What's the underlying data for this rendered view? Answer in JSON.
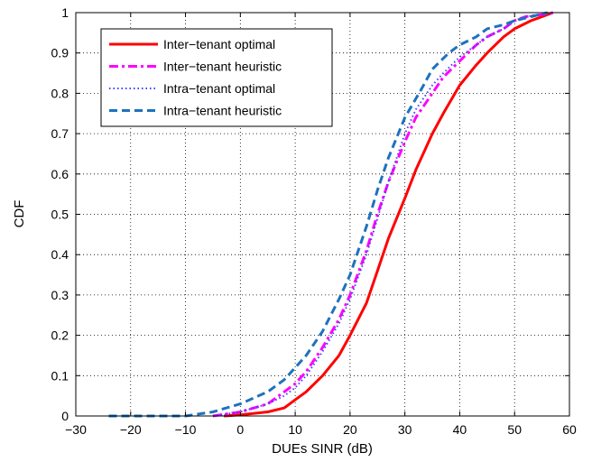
{
  "chart_data": {
    "type": "line",
    "title": "",
    "xlabel": "DUEs SINR (dB)",
    "ylabel": "CDF",
    "xlim": [
      -30,
      60
    ],
    "ylim": [
      0,
      1
    ],
    "xticks": [
      -30,
      -20,
      -10,
      0,
      10,
      20,
      30,
      40,
      50,
      60
    ],
    "xtick_labels": [
      "−30",
      "−20",
      "−10",
      "0",
      "10",
      "20",
      "30",
      "40",
      "50",
      "60"
    ],
    "yticks": [
      0,
      0.1,
      0.2,
      0.3,
      0.4,
      0.5,
      0.6,
      0.7,
      0.8,
      0.9,
      1
    ],
    "ytick_labels": [
      "0",
      "0.1",
      "0.2",
      "0.3",
      "0.4",
      "0.5",
      "0.6",
      "0.7",
      "0.8",
      "0.9",
      "1"
    ],
    "grid": true,
    "legend_position": "top-left",
    "series": [
      {
        "name": "Inter−tenant optimal",
        "color": "#ff0000",
        "dash": "solid",
        "x": [
          -3,
          0,
          5,
          8,
          10,
          12,
          15,
          18,
          20,
          23,
          25,
          27,
          30,
          32,
          35,
          37,
          40,
          43,
          45,
          48,
          50,
          53,
          55,
          57
        ],
        "y": [
          0,
          0.003,
          0.01,
          0.02,
          0.04,
          0.06,
          0.1,
          0.15,
          0.2,
          0.28,
          0.36,
          0.44,
          0.54,
          0.61,
          0.7,
          0.75,
          0.82,
          0.87,
          0.9,
          0.94,
          0.96,
          0.98,
          0.99,
          1
        ]
      },
      {
        "name": "Inter−tenant heuristic",
        "color": "#ff00ff",
        "dash": "dashdot",
        "x": [
          -5,
          0,
          5,
          8,
          10,
          12,
          15,
          18,
          20,
          23,
          25,
          27,
          30,
          32,
          35,
          37,
          40,
          43,
          45,
          48,
          50,
          52,
          55,
          57
        ],
        "y": [
          0,
          0.01,
          0.03,
          0.06,
          0.08,
          0.11,
          0.17,
          0.24,
          0.3,
          0.41,
          0.5,
          0.58,
          0.68,
          0.74,
          0.8,
          0.84,
          0.88,
          0.92,
          0.94,
          0.96,
          0.98,
          0.99,
          0.995,
          1
        ]
      },
      {
        "name": "Intra−tenant optimal",
        "color": "#4040ff",
        "dash": "dotted",
        "x": [
          -5,
          0,
          5,
          8,
          10,
          12,
          15,
          18,
          20,
          23,
          25,
          27,
          30,
          32,
          35,
          37,
          40,
          43,
          45,
          48,
          50,
          52,
          55,
          57
        ],
        "y": [
          0,
          0.01,
          0.03,
          0.05,
          0.07,
          0.1,
          0.16,
          0.23,
          0.29,
          0.4,
          0.49,
          0.58,
          0.7,
          0.76,
          0.82,
          0.85,
          0.89,
          0.92,
          0.94,
          0.96,
          0.98,
          0.99,
          0.995,
          1
        ]
      },
      {
        "name": "Intra−tenant heuristic",
        "color": "#1e72bd",
        "dash": "dashed",
        "x": [
          -24,
          -10,
          -5,
          0,
          5,
          8,
          10,
          12,
          15,
          18,
          20,
          23,
          25,
          27,
          30,
          33,
          35,
          38,
          40,
          43,
          45,
          48,
          50,
          53,
          56
        ],
        "y": [
          0,
          0,
          0.01,
          0.03,
          0.06,
          0.09,
          0.12,
          0.15,
          0.21,
          0.29,
          0.35,
          0.47,
          0.56,
          0.64,
          0.74,
          0.81,
          0.86,
          0.9,
          0.92,
          0.94,
          0.96,
          0.97,
          0.98,
          0.99,
          1
        ]
      }
    ]
  }
}
